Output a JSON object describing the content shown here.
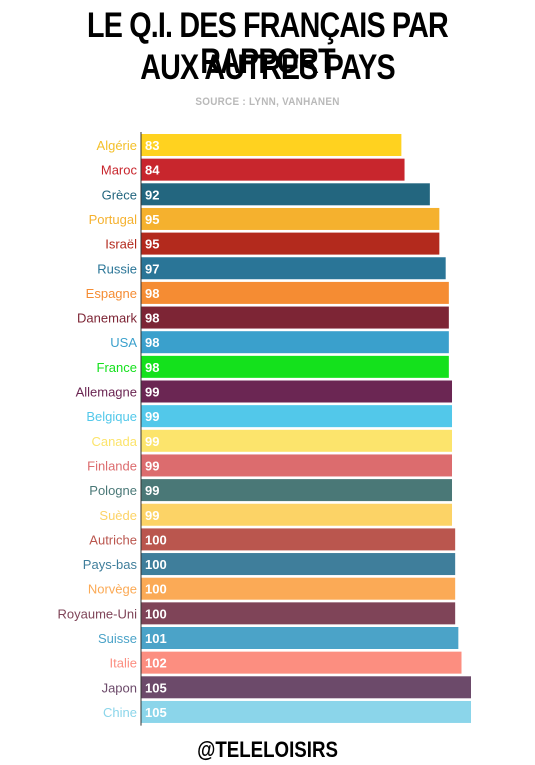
{
  "header": {
    "title_line1": "LE Q.I. DES FRANÇAIS PAR RAPPORT",
    "title_line2": "AUX AUTRES PAYS",
    "source": "SOURCE : LYNN, VANHANEN"
  },
  "footer": {
    "credit": "@TELELOISIRS"
  },
  "chart_data": {
    "type": "bar",
    "orientation": "horizontal",
    "title": "LE Q.I. DES FRANÇAIS PAR RAPPORT AUX AUTRES PAYS",
    "categories": [
      "Algérie",
      "Maroc",
      "Grèce",
      "Portugal",
      "Israël",
      "Russie",
      "Espagne",
      "Danemark",
      "USA",
      "France",
      "Allemagne",
      "Belgique",
      "Canada",
      "Finlande",
      "Pologne",
      "Suède",
      "Autriche",
      "Pays-bas",
      "Norvège",
      "Royaume-Uni",
      "Suisse",
      "Italie",
      "Japon",
      "Chine"
    ],
    "values": [
      83,
      84,
      92,
      95,
      95,
      97,
      98,
      98,
      98,
      98,
      99,
      99,
      99,
      99,
      99,
      99,
      100,
      100,
      100,
      100,
      101,
      102,
      105,
      105
    ],
    "colors": [
      "#ffd21f",
      "#c8262d",
      "#23667f",
      "#f5b12e",
      "#b32a1d",
      "#2a7597",
      "#f58c33",
      "#7d2535",
      "#3aa0cc",
      "#14e11c",
      "#6b2653",
      "#52c8ea",
      "#fce46c",
      "#dc6c6e",
      "#4a7877",
      "#fcd366",
      "#ba564e",
      "#3f7e9b",
      "#fbaa56",
      "#7f4458",
      "#4ba3c8",
      "#fc8e80",
      "#6c4a6a",
      "#8bd5ea"
    ],
    "label_colors": [
      "#f4c02a",
      "#c8262d",
      "#23667f",
      "#f5b12e",
      "#b32a1d",
      "#2a7597",
      "#f58c33",
      "#7d2535",
      "#3aa0cc",
      "#14e11c",
      "#6b2653",
      "#52c8ea",
      "#fce46c",
      "#dc6c6e",
      "#4a7877",
      "#fcd366",
      "#ba564e",
      "#3f7e9b",
      "#fbaa56",
      "#7f4458",
      "#4ba3c8",
      "#fc8e80",
      "#6c4a6a",
      "#8bd5ea"
    ],
    "grid": false,
    "legend": "none"
  }
}
